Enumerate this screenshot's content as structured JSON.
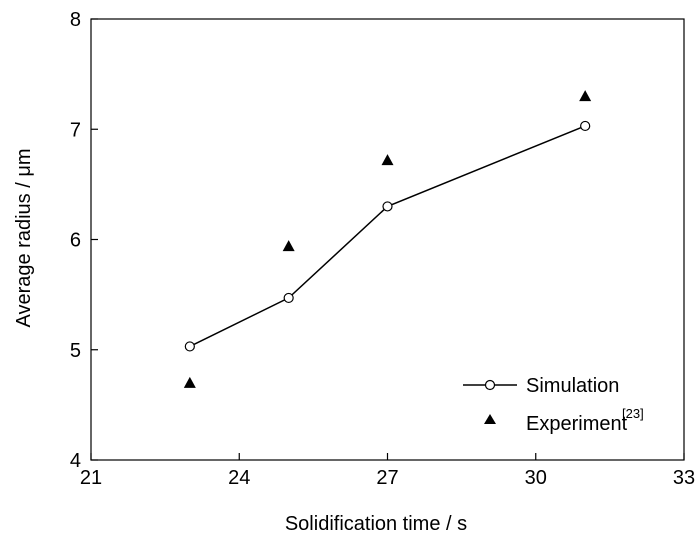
{
  "chart_data": {
    "type": "line",
    "xlabel": "Solidification time / s",
    "ylabel": "Average radius / μm",
    "xlim": [
      21,
      33
    ],
    "ylim": [
      4,
      8
    ],
    "xticks": [
      "21",
      "24",
      "27",
      "30",
      "33"
    ],
    "yticks": [
      "4",
      "5",
      "6",
      "7",
      "8"
    ],
    "grid": false,
    "legend_position": "bottom-right",
    "series": [
      {
        "name": "Simulation",
        "marker": "open-circle",
        "line": true,
        "x": [
          23,
          25,
          27,
          31
        ],
        "y": [
          5.03,
          5.47,
          6.3,
          7.03
        ]
      },
      {
        "name": "Experiment",
        "name_superscript": "[23]",
        "marker": "filled-triangle",
        "line": false,
        "x": [
          23,
          25,
          27,
          31
        ],
        "y": [
          4.7,
          5.94,
          6.72,
          7.3
        ]
      }
    ],
    "colors": {
      "line": "#000000",
      "marker_fill": "#ffffff"
    }
  }
}
